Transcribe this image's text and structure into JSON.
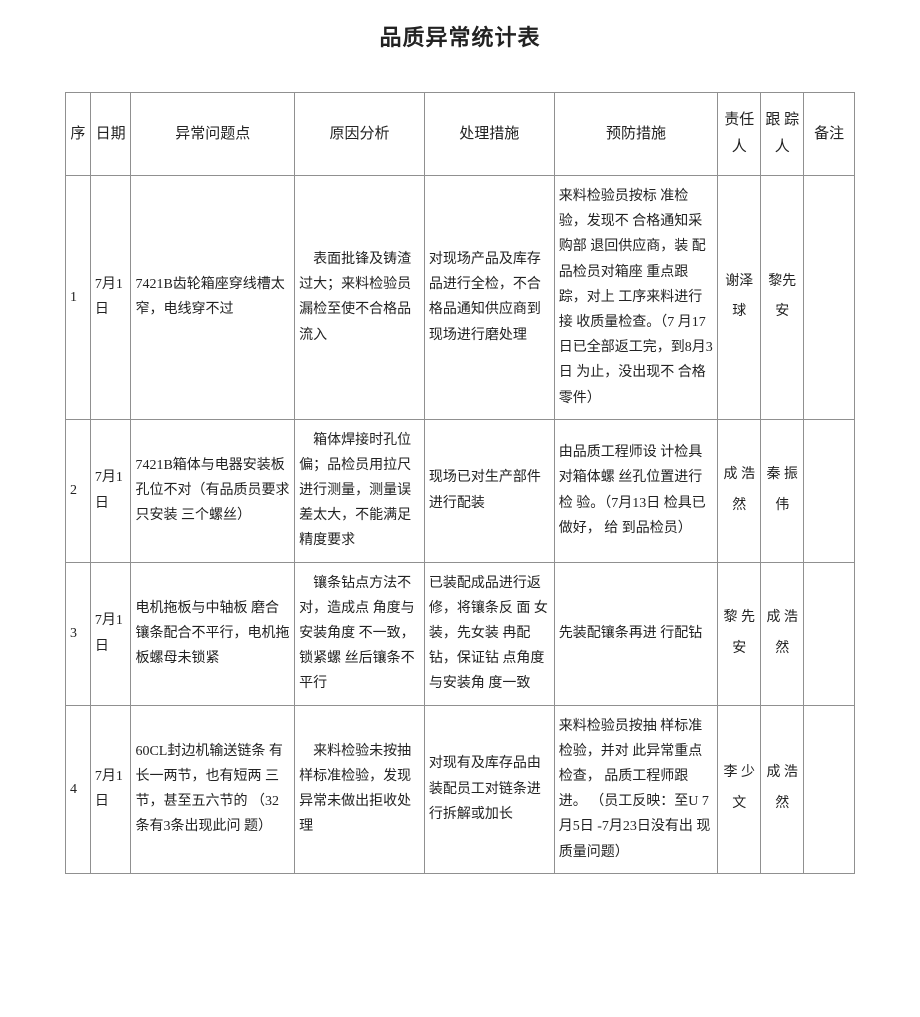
{
  "title": "品质异常统计表",
  "columns": {
    "seq": "序",
    "date": "日期",
    "problem": "异常问题点",
    "cause": "原因分析",
    "action": "处理措施",
    "prevention": "预防措施",
    "responsible": "责任人",
    "tracker": "跟 踪人",
    "note": "备注"
  },
  "rows": [
    {
      "seq": "1",
      "date": "7月1日",
      "problem": "7421B齿轮箱座穿线槽太窄，电线穿不过",
      "cause": "　表面批锋及铸渣过大；来料检验员漏检至使不合格品流入",
      "action": "对现场产品及库存品进行全检，不合格品通知供应商到现场进行磨处理",
      "prevention": "来料检验员按标 准检验，发现不 合格通知采购部 退回供应商，装 配品检员对箱座 重点跟踪，对上 工序来料进行接 收质量检查。（7 月17日已全部返工完，到8月3日 为止，没出现不 合格零件）",
      "responsible": "谢泽球",
      "tracker": "黎先安",
      "note": ""
    },
    {
      "seq": "2",
      "date": "7月1日",
      "problem": "7421B箱体与电器安装板孔位不对（有品质员要求只安装 三个螺丝）",
      "cause": "　箱体焊接时孔位偏；品检员用拉尺进行测量，测量误差太大，不能满足精度要求",
      "action": "现场已对生产部件进行配装",
      "prevention": "由品质工程师设 计检具对箱体螺 丝孔位置进行检 验。（7月13日 检具已做好， 给 到品检员）",
      "responsible": "成 浩 然",
      "tracker": "秦 振 伟",
      "note": ""
    },
    {
      "seq": "3",
      "date": "7月1日",
      "problem": "电机拖板与中轴板 磨合镶条配合不平行，电机拖板螺母未锁紧",
      "cause": "　镶条钻点方法不对，造成点 角度与安装角度 不一致，锁紧螺 丝后镶条不平行",
      "action": "已装配成品进行返修，将镶条反 面 女装，先女装 冉配钻，保证钻 点角度与安装角 度一致",
      "prevention": "先装配镶条再进 行配钻",
      "responsible": "黎 先 安",
      "tracker": "成 浩 然",
      "note": ""
    },
    {
      "seq": "4",
      "date": "7月1日",
      "problem": "60CL封边机输送链条 有长一两节，也有短两 三节，甚至五六节的 （32条有3条出现此问 题）",
      "cause": "　来料检验未按抽样标准检验，发现异常未做出拒收处理",
      "action": "对现有及库存品由装配员工对链条进行拆解或加长",
      "prevention": "来料检验员按抽 样标准检验，并对 此异常重点检查， 品质工程师跟进。 （员工反映：至U 7月5日\n-7月23日没有出 现质量问题）",
      "responsible": "李 少 文",
      "tracker": "成 浩 然",
      "note": ""
    }
  ]
}
